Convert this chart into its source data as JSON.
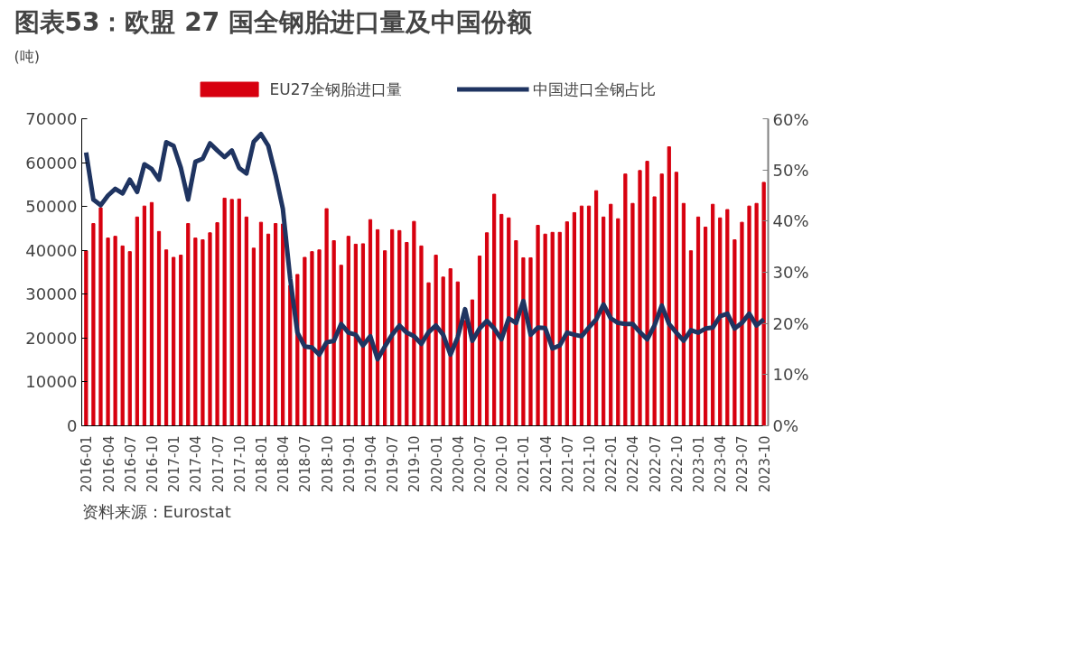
{
  "chart_data": {
    "type": "bar",
    "title": "图表53：欧盟 27 国全钢胎进口量及中国份额",
    "ylabel": "(吨)",
    "annotations": [
      "资料来源：Eurostat"
    ],
    "categories": [
      "2016-01",
      null,
      null,
      "2016-04",
      null,
      null,
      "2016-07",
      null,
      null,
      "2016-10",
      null,
      null,
      "2017-01",
      null,
      null,
      "2017-04",
      null,
      null,
      "2017-07",
      null,
      null,
      "2017-10",
      null,
      null,
      "2018-01",
      null,
      null,
      "2018-04",
      null,
      null,
      "2018-07",
      null,
      null,
      "2018-10",
      null,
      null,
      "2019-01",
      null,
      null,
      "2019-04",
      null,
      null,
      "2019-07",
      null,
      null,
      "2019-10",
      null,
      null,
      "2020-01",
      null,
      null,
      "2020-04",
      null,
      null,
      "2020-07",
      null,
      null,
      "2020-10",
      null,
      null,
      "2021-01",
      null,
      null,
      "2021-04",
      null,
      null,
      "2021-07",
      null,
      null,
      "2021-10",
      null,
      null,
      "2022-01",
      null,
      null,
      "2022-04",
      null,
      null,
      "2022-07",
      null,
      null,
      "2022-10",
      null,
      null,
      "2023-01",
      null,
      null,
      "2023-04",
      null,
      null,
      "2023-07",
      null,
      null,
      "2023-10"
    ],
    "series": [
      {
        "name": "EU27全钢胎进口量",
        "color": "#d7000f",
        "values": [
          39900,
          46100,
          49700,
          42800,
          43200,
          41000,
          39700,
          47600,
          50100,
          50900,
          44300,
          40100,
          38400,
          38900,
          46100,
          42800,
          42400,
          44000,
          46300,
          51900,
          51600,
          51700,
          47600,
          40500,
          46400,
          43700,
          46100,
          46000,
          32000,
          34500,
          38400,
          39700,
          40100,
          49500,
          42200,
          36600,
          43200,
          41400,
          41500,
          47000,
          44700,
          39900,
          44700,
          44500,
          41800,
          46600,
          41000,
          32600,
          38900,
          33900,
          35800,
          32800,
          24000,
          28700,
          38700,
          44000,
          52800,
          48200,
          47400,
          42200,
          38300,
          38300,
          45700,
          43700,
          44100,
          44100,
          46500,
          48600,
          50100,
          50100,
          53600,
          47600,
          50500,
          47200,
          57400,
          50700,
          58200,
          60300,
          52200,
          57400,
          63600,
          57800,
          50700,
          39900,
          47600,
          45300,
          50500,
          47400,
          49300,
          42400,
          46400,
          50100,
          50700,
          55500
        ]
      },
      {
        "name": "中国进口全钢占比",
        "type": "line",
        "axis": "y2",
        "color": "#1f3461",
        "values": [
          53.4,
          44.2,
          43.1,
          45.0,
          46.3,
          45.4,
          48.1,
          45.7,
          51.1,
          50.2,
          48.1,
          55.4,
          54.7,
          50.4,
          44.2,
          51.6,
          52.2,
          55.2,
          53.8,
          52.5,
          53.8,
          50.4,
          49.3,
          55.5,
          57.0,
          54.7,
          49.0,
          42.4,
          28.8,
          18.2,
          15.5,
          15.3,
          13.9,
          16.3,
          16.6,
          19.9,
          18.2,
          17.8,
          15.7,
          17.5,
          13.0,
          15.5,
          17.8,
          19.6,
          18.2,
          17.5,
          16.0,
          18.3,
          19.6,
          17.8,
          13.9,
          17.3,
          22.8,
          16.6,
          19.0,
          20.5,
          19.0,
          16.9,
          21.0,
          20.1,
          24.4,
          17.8,
          19.2,
          19.1,
          15.1,
          15.7,
          18.2,
          17.8,
          17.5,
          19.2,
          20.8,
          23.7,
          21.0,
          20.1,
          19.9,
          19.9,
          18.3,
          16.9,
          19.6,
          23.5,
          19.9,
          18.2,
          16.6,
          18.7,
          18.2,
          19.0,
          19.2,
          21.4,
          21.9,
          19.0,
          20.1,
          21.9,
          19.6,
          20.8
        ]
      }
    ],
    "ylim": [
      0,
      70000
    ],
    "yticks": [
      0,
      10000,
      20000,
      30000,
      40000,
      50000,
      60000,
      70000
    ],
    "y2lim": [
      0,
      60
    ],
    "y2ticks": [
      {
        "value": 0,
        "label": "0%"
      },
      {
        "value": 10,
        "label": "10%"
      },
      {
        "value": 20,
        "label": "20%"
      },
      {
        "value": 30,
        "label": "30%"
      },
      {
        "value": 40,
        "label": "40%"
      },
      {
        "value": 50,
        "label": "50%"
      },
      {
        "value": 60,
        "label": "60%"
      }
    ],
    "legend": "top",
    "grid": false
  }
}
